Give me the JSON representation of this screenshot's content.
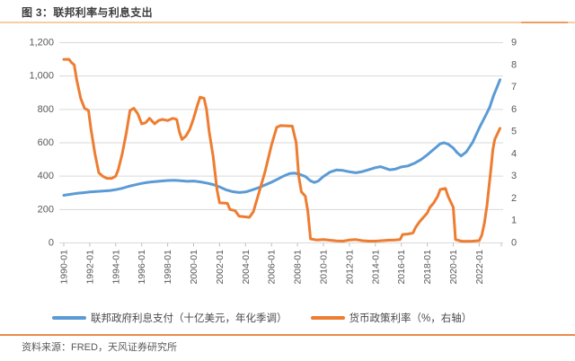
{
  "header": {
    "title": "图 3：联邦利率与利息支出"
  },
  "footer": {
    "source": "资料来源：FRED，天风证券研究所"
  },
  "colors": {
    "accent_rule_light": "#f6cda9",
    "accent_rule_dark": "#ed9d5f",
    "accent_rule_bottom": "#e98c4a",
    "gridline": "#d9d9d9",
    "axis_label": "#595959",
    "tick_mark": "#bfbfbf"
  },
  "chart_data": {
    "type": "line",
    "title": "图 3：联邦利率与利息支出",
    "grid": "horizontal",
    "legend_position": "bottom",
    "x_axis": {
      "kind": "time",
      "tick_labels": [
        "1990-01",
        "1992-01",
        "1994-01",
        "1996-01",
        "1998-01",
        "2000-01",
        "2002-01",
        "2004-01",
        "2006-01",
        "2008-01",
        "2010-01",
        "2012-01",
        "2014-01",
        "2016-01",
        "2018-01",
        "2020-01",
        "2022-01"
      ],
      "range_years": [
        1990.0,
        2023.7
      ]
    },
    "left_axis": {
      "min": 0,
      "max": 1200,
      "step": 200,
      "tick_labels": [
        "0",
        "200",
        "400",
        "600",
        "800",
        "1,000",
        "1,200"
      ]
    },
    "right_axis": {
      "min": 0,
      "max": 9,
      "step": 1,
      "tick_labels": [
        "0",
        "1",
        "2",
        "3",
        "4",
        "5",
        "6",
        "7",
        "8",
        "9"
      ]
    },
    "series": [
      {
        "name": "联邦政府利息支付（十亿美元，年化季调）",
        "axis": "left",
        "color": "#5B9BD5",
        "points": [
          [
            1990.0,
            285
          ],
          [
            1990.5,
            291
          ],
          [
            1991.0,
            297
          ],
          [
            1991.5,
            301
          ],
          [
            1992.0,
            305
          ],
          [
            1992.5,
            308
          ],
          [
            1993.0,
            311
          ],
          [
            1993.5,
            313
          ],
          [
            1994.0,
            319
          ],
          [
            1994.5,
            327
          ],
          [
            1995.0,
            339
          ],
          [
            1995.5,
            348
          ],
          [
            1996.0,
            357
          ],
          [
            1996.5,
            363
          ],
          [
            1997.0,
            367
          ],
          [
            1997.5,
            371
          ],
          [
            1998.0,
            374
          ],
          [
            1998.5,
            375
          ],
          [
            1999.0,
            373
          ],
          [
            1999.5,
            369
          ],
          [
            2000.0,
            371
          ],
          [
            2000.5,
            366
          ],
          [
            2001.0,
            359
          ],
          [
            2001.5,
            350
          ],
          [
            2002.0,
            336
          ],
          [
            2002.5,
            318
          ],
          [
            2003.0,
            307
          ],
          [
            2003.5,
            302
          ],
          [
            2004.0,
            305
          ],
          [
            2004.5,
            317
          ],
          [
            2005.0,
            331
          ],
          [
            2005.5,
            347
          ],
          [
            2006.0,
            364
          ],
          [
            2006.5,
            383
          ],
          [
            2007.0,
            403
          ],
          [
            2007.4,
            416
          ],
          [
            2007.8,
            418
          ],
          [
            2008.2,
            410
          ],
          [
            2008.6,
            398
          ],
          [
            2009.0,
            372
          ],
          [
            2009.3,
            362
          ],
          [
            2009.6,
            371
          ],
          [
            2010.0,
            398
          ],
          [
            2010.5,
            424
          ],
          [
            2011.0,
            437
          ],
          [
            2011.5,
            434
          ],
          [
            2012.0,
            426
          ],
          [
            2012.5,
            420
          ],
          [
            2013.0,
            427
          ],
          [
            2013.5,
            439
          ],
          [
            2014.0,
            451
          ],
          [
            2014.4,
            457
          ],
          [
            2014.8,
            446
          ],
          [
            2015.1,
            438
          ],
          [
            2015.5,
            442
          ],
          [
            2016.0,
            455
          ],
          [
            2016.5,
            461
          ],
          [
            2017.0,
            477
          ],
          [
            2017.5,
            499
          ],
          [
            2018.0,
            528
          ],
          [
            2018.5,
            561
          ],
          [
            2019.0,
            594
          ],
          [
            2019.3,
            600
          ],
          [
            2019.6,
            592
          ],
          [
            2020.0,
            569
          ],
          [
            2020.3,
            541
          ],
          [
            2020.6,
            521
          ],
          [
            2021.0,
            545
          ],
          [
            2021.5,
            604
          ],
          [
            2022.0,
            688
          ],
          [
            2022.5,
            764
          ],
          [
            2022.8,
            812
          ],
          [
            2023.1,
            882
          ],
          [
            2023.4,
            938
          ],
          [
            2023.6,
            978
          ]
        ]
      },
      {
        "name": "货币政策利率（%，右轴）",
        "axis": "right",
        "color": "#ED7D31",
        "points": [
          [
            1990.0,
            8.25
          ],
          [
            1990.4,
            8.25
          ],
          [
            1990.6,
            8.1
          ],
          [
            1990.8,
            8.0
          ],
          [
            1991.0,
            7.3
          ],
          [
            1991.3,
            6.5
          ],
          [
            1991.6,
            6.05
          ],
          [
            1991.9,
            5.95
          ],
          [
            1992.1,
            5.1
          ],
          [
            1992.4,
            4.0
          ],
          [
            1992.7,
            3.15
          ],
          [
            1993.0,
            3.0
          ],
          [
            1993.3,
            2.9
          ],
          [
            1993.7,
            2.9
          ],
          [
            1994.0,
            3.0
          ],
          [
            1994.2,
            3.3
          ],
          [
            1994.5,
            4.0
          ],
          [
            1994.8,
            4.9
          ],
          [
            1995.1,
            5.95
          ],
          [
            1995.4,
            6.05
          ],
          [
            1995.7,
            5.8
          ],
          [
            1996.0,
            5.35
          ],
          [
            1996.3,
            5.4
          ],
          [
            1996.6,
            5.6
          ],
          [
            1997.0,
            5.35
          ],
          [
            1997.3,
            5.5
          ],
          [
            1997.6,
            5.55
          ],
          [
            1998.0,
            5.5
          ],
          [
            1998.4,
            5.6
          ],
          [
            1998.7,
            5.55
          ],
          [
            1998.9,
            5.0
          ],
          [
            1999.1,
            4.65
          ],
          [
            1999.4,
            4.8
          ],
          [
            1999.7,
            5.1
          ],
          [
            2000.0,
            5.6
          ],
          [
            2000.3,
            6.2
          ],
          [
            2000.5,
            6.55
          ],
          [
            2000.8,
            6.5
          ],
          [
            2001.0,
            6.0
          ],
          [
            2001.2,
            5.0
          ],
          [
            2001.5,
            3.9
          ],
          [
            2001.8,
            2.4
          ],
          [
            2002.0,
            1.8
          ],
          [
            2002.6,
            1.78
          ],
          [
            2002.8,
            1.5
          ],
          [
            2003.2,
            1.45
          ],
          [
            2003.5,
            1.2
          ],
          [
            2004.3,
            1.15
          ],
          [
            2004.6,
            1.4
          ],
          [
            2005.0,
            2.2
          ],
          [
            2005.5,
            3.2
          ],
          [
            2006.0,
            4.4
          ],
          [
            2006.4,
            5.2
          ],
          [
            2006.7,
            5.27
          ],
          [
            2007.3,
            5.26
          ],
          [
            2007.6,
            5.25
          ],
          [
            2007.9,
            4.5
          ],
          [
            2008.1,
            3.0
          ],
          [
            2008.3,
            2.3
          ],
          [
            2008.6,
            2.1
          ],
          [
            2008.8,
            1.4
          ],
          [
            2009.0,
            0.18
          ],
          [
            2009.5,
            0.13
          ],
          [
            2010.0,
            0.15
          ],
          [
            2010.5,
            0.12
          ],
          [
            2011.0,
            0.09
          ],
          [
            2011.5,
            0.08
          ],
          [
            2012.0,
            0.13
          ],
          [
            2012.5,
            0.15
          ],
          [
            2013.0,
            0.1
          ],
          [
            2013.5,
            0.08
          ],
          [
            2014.0,
            0.08
          ],
          [
            2014.5,
            0.1
          ],
          [
            2015.0,
            0.12
          ],
          [
            2015.5,
            0.13
          ],
          [
            2015.9,
            0.15
          ],
          [
            2016.1,
            0.38
          ],
          [
            2016.5,
            0.4
          ],
          [
            2016.9,
            0.45
          ],
          [
            2017.1,
            0.7
          ],
          [
            2017.4,
            0.95
          ],
          [
            2017.7,
            1.15
          ],
          [
            2018.0,
            1.35
          ],
          [
            2018.2,
            1.6
          ],
          [
            2018.5,
            1.8
          ],
          [
            2018.8,
            2.1
          ],
          [
            2019.0,
            2.4
          ],
          [
            2019.4,
            2.45
          ],
          [
            2019.6,
            2.1
          ],
          [
            2019.8,
            1.85
          ],
          [
            2020.0,
            1.6
          ],
          [
            2020.17,
            0.15
          ],
          [
            2020.6,
            0.08
          ],
          [
            2021.0,
            0.07
          ],
          [
            2021.5,
            0.08
          ],
          [
            2022.0,
            0.1
          ],
          [
            2022.2,
            0.35
          ],
          [
            2022.4,
            0.9
          ],
          [
            2022.6,
            1.7
          ],
          [
            2022.75,
            2.5
          ],
          [
            2022.9,
            3.3
          ],
          [
            2023.05,
            4.2
          ],
          [
            2023.2,
            4.65
          ],
          [
            2023.4,
            4.9
          ],
          [
            2023.6,
            5.15
          ]
        ]
      }
    ]
  }
}
